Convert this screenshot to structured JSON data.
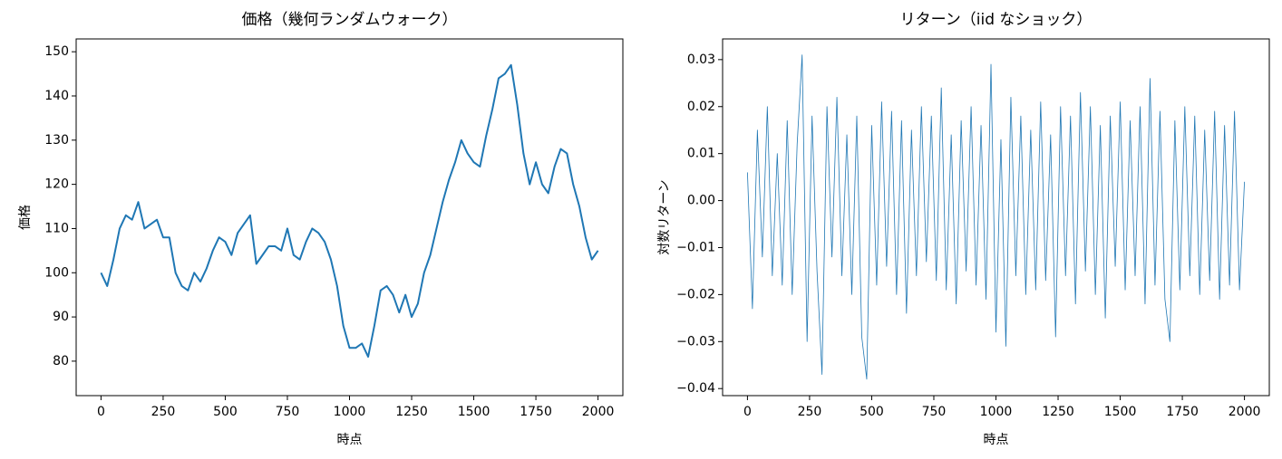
{
  "chart_data": [
    {
      "type": "line",
      "title": "価格（幾何ランダムウォーク）",
      "xlabel": "時点",
      "ylabel": "価格",
      "x": [
        0,
        25,
        50,
        75,
        100,
        125,
        150,
        175,
        200,
        225,
        250,
        275,
        300,
        325,
        350,
        375,
        400,
        425,
        450,
        475,
        500,
        525,
        550,
        575,
        600,
        625,
        650,
        675,
        700,
        725,
        750,
        775,
        800,
        825,
        850,
        875,
        900,
        925,
        950,
        975,
        1000,
        1025,
        1050,
        1075,
        1100,
        1125,
        1150,
        1175,
        1200,
        1225,
        1250,
        1275,
        1300,
        1325,
        1350,
        1375,
        1400,
        1425,
        1450,
        1475,
        1500,
        1525,
        1550,
        1575,
        1600,
        1625,
        1650,
        1675,
        1700,
        1725,
        1750,
        1775,
        1800,
        1825,
        1850,
        1875,
        1900,
        1925,
        1950,
        1975,
        2000
      ],
      "series": [
        {
          "name": "価格",
          "color": "#1f77b4",
          "values": [
            100,
            97,
            103,
            110,
            113,
            112,
            116,
            110,
            111,
            112,
            108,
            108,
            100,
            97,
            96,
            100,
            98,
            101,
            105,
            108,
            107,
            104,
            109,
            111,
            113,
            102,
            104,
            106,
            106,
            105,
            110,
            104,
            103,
            107,
            110,
            109,
            107,
            103,
            97,
            88,
            83,
            83,
            84,
            81,
            88,
            96,
            97,
            95,
            91,
            95,
            90,
            93,
            100,
            104,
            110,
            116,
            121,
            125,
            130,
            127,
            125,
            124,
            131,
            137,
            144,
            145,
            147,
            138,
            127,
            120,
            125,
            120,
            118,
            124,
            128,
            127,
            120,
            115,
            108,
            103,
            105
          ]
        }
      ],
      "xlim": [
        -100,
        2100
      ],
      "ylim": [
        72.2,
        152.9
      ],
      "xticks": [
        0,
        250,
        500,
        750,
        1000,
        1250,
        1500,
        1750,
        2000
      ],
      "yticks": [
        80,
        90,
        100,
        110,
        120,
        130,
        140,
        150
      ]
    },
    {
      "type": "line",
      "title": "リターン（iid なショック）",
      "xlabel": "時点",
      "ylabel": "対数リターン",
      "x": [
        0,
        20,
        40,
        60,
        80,
        100,
        120,
        140,
        160,
        180,
        200,
        220,
        240,
        260,
        280,
        300,
        320,
        340,
        360,
        380,
        400,
        420,
        440,
        460,
        480,
        500,
        520,
        540,
        560,
        580,
        600,
        620,
        640,
        660,
        680,
        700,
        720,
        740,
        760,
        780,
        800,
        820,
        840,
        860,
        880,
        900,
        920,
        940,
        960,
        980,
        1000,
        1020,
        1040,
        1060,
        1080,
        1100,
        1120,
        1140,
        1160,
        1180,
        1200,
        1220,
        1240,
        1260,
        1280,
        1300,
        1320,
        1340,
        1360,
        1380,
        1400,
        1420,
        1440,
        1460,
        1480,
        1500,
        1520,
        1540,
        1560,
        1580,
        1600,
        1620,
        1640,
        1660,
        1680,
        1700,
        1720,
        1740,
        1760,
        1780,
        1800,
        1820,
        1840,
        1860,
        1880,
        1900,
        1920,
        1940,
        1960,
        1980,
        2000
      ],
      "series": [
        {
          "name": "対数リターン",
          "color": "#1f77b4",
          "values": [
            0.006,
            -0.023,
            0.015,
            -0.012,
            0.02,
            -0.016,
            0.01,
            -0.018,
            0.017,
            -0.02,
            0.012,
            0.031,
            -0.03,
            0.018,
            -0.015,
            -0.037,
            0.02,
            -0.012,
            0.022,
            -0.016,
            0.014,
            -0.02,
            0.018,
            -0.029,
            -0.038,
            0.016,
            -0.018,
            0.021,
            -0.014,
            0.019,
            -0.02,
            0.017,
            -0.024,
            0.015,
            -0.016,
            0.02,
            -0.013,
            0.018,
            -0.017,
            0.024,
            -0.019,
            0.014,
            -0.022,
            0.017,
            -0.015,
            0.02,
            -0.018,
            0.016,
            -0.021,
            0.029,
            -0.028,
            0.013,
            -0.031,
            0.022,
            -0.016,
            0.018,
            -0.02,
            0.015,
            -0.019,
            0.021,
            -0.017,
            0.014,
            -0.029,
            0.02,
            -0.016,
            0.018,
            -0.022,
            0.023,
            -0.015,
            0.02,
            -0.02,
            0.016,
            -0.025,
            0.018,
            -0.014,
            0.021,
            -0.019,
            0.017,
            -0.016,
            0.02,
            -0.022,
            0.026,
            -0.018,
            0.019,
            -0.021,
            -0.03,
            0.017,
            -0.019,
            0.02,
            -0.016,
            0.018,
            -0.02,
            0.015,
            -0.017,
            0.019,
            -0.021,
            0.016,
            -0.018,
            0.019,
            -0.019,
            0.004
          ]
        }
      ],
      "xlim": [
        -100,
        2100
      ],
      "ylim": [
        -0.0415,
        0.0344
      ],
      "xticks": [
        0,
        250,
        500,
        750,
        1000,
        1250,
        1500,
        1750,
        2000
      ],
      "yticks": [
        {
          "value": -0.04,
          "label": "−0.04"
        },
        {
          "value": -0.03,
          "label": "−0.03"
        },
        {
          "value": -0.02,
          "label": "−0.02"
        },
        {
          "value": -0.01,
          "label": "−0.01"
        },
        {
          "value": 0,
          "label": "0.00"
        },
        {
          "value": 0.01,
          "label": "0.01"
        },
        {
          "value": 0.02,
          "label": "0.02"
        },
        {
          "value": 0.03,
          "label": "0.03"
        }
      ]
    }
  ]
}
